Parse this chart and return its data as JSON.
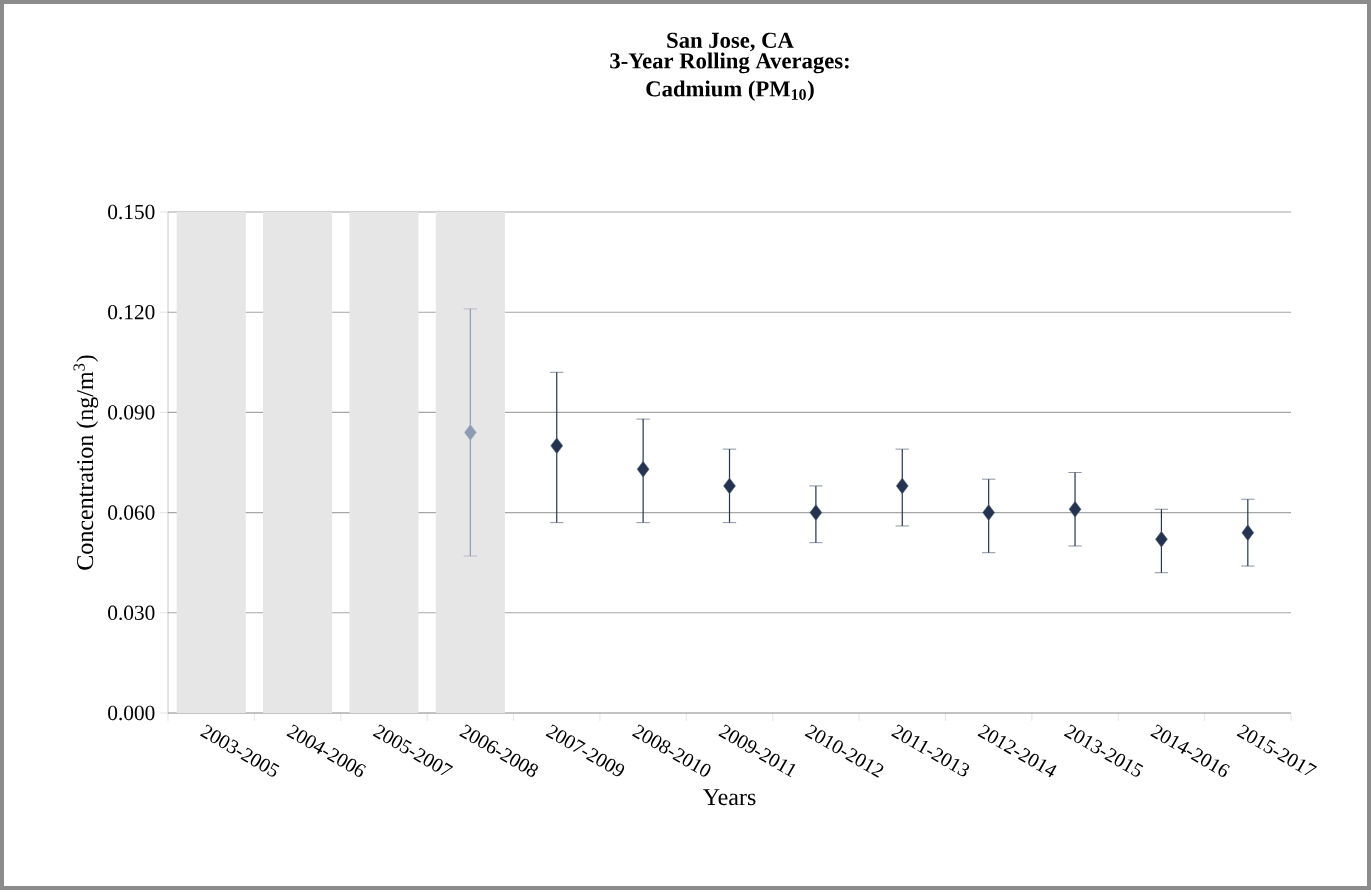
{
  "chart_data": {
    "type": "scatter",
    "title": "San Jose, CA",
    "subtitle": "3-Year Rolling Averages: Cadmium (PM$_{10}$)",
    "xlabel": "Years",
    "ylabel": "Concentration (ng/m$^{3}$)",
    "categories": [
      "2003-2005",
      "2004-2006",
      "2005-2007",
      "2006-2008",
      "2007-2009",
      "2008-2010",
      "2009-2011",
      "2010-2012",
      "2011-2013",
      "2012-2014",
      "2013-2015",
      "2014-2016",
      "2015-2017"
    ],
    "ylim": [
      0,
      0.15
    ],
    "yticks": [
      {
        "value": 0,
        "label": "0.000"
      },
      {
        "value": 0.03,
        "label": "0.030"
      },
      {
        "value": 0.06,
        "label": "0.060"
      },
      {
        "value": 0.09,
        "label": "0.090"
      },
      {
        "value": 0.12,
        "label": "0.120"
      },
      {
        "value": 0.15,
        "label": "0.150"
      }
    ],
    "grid": "y",
    "marker": "diamond",
    "series": [
      {
        "type": "bar",
        "color": "#e6e6e6",
        "values": [
          0.15,
          0.15,
          0.15,
          0.15,
          null,
          null,
          null,
          null,
          null,
          null,
          null,
          null,
          null
        ]
      },
      {
        "colors": [
          "#243450",
          "#243450",
          "#243450",
          "#8d9bb0",
          "#243450",
          "#243450",
          "#243450",
          "#243450",
          "#243450",
          "#243450",
          "#243450",
          "#243450",
          "#243450"
        ],
        "values": [
          null,
          null,
          null,
          0.084,
          0.08,
          0.073,
          0.068,
          0.06,
          0.068,
          0.06,
          0.061,
          0.052,
          0.054
        ],
        "errors": [
          null,
          null,
          null,
          [
            0.047,
            0.121
          ],
          [
            0.057,
            0.102
          ],
          [
            0.057,
            0.088
          ],
          [
            0.057,
            0.079
          ],
          [
            0.051,
            0.068
          ],
          [
            0.056,
            0.079
          ],
          [
            0.048,
            0.07
          ],
          [
            0.05,
            0.072
          ],
          [
            0.042,
            0.061
          ],
          [
            0.044,
            0.064
          ]
        ]
      }
    ]
  }
}
